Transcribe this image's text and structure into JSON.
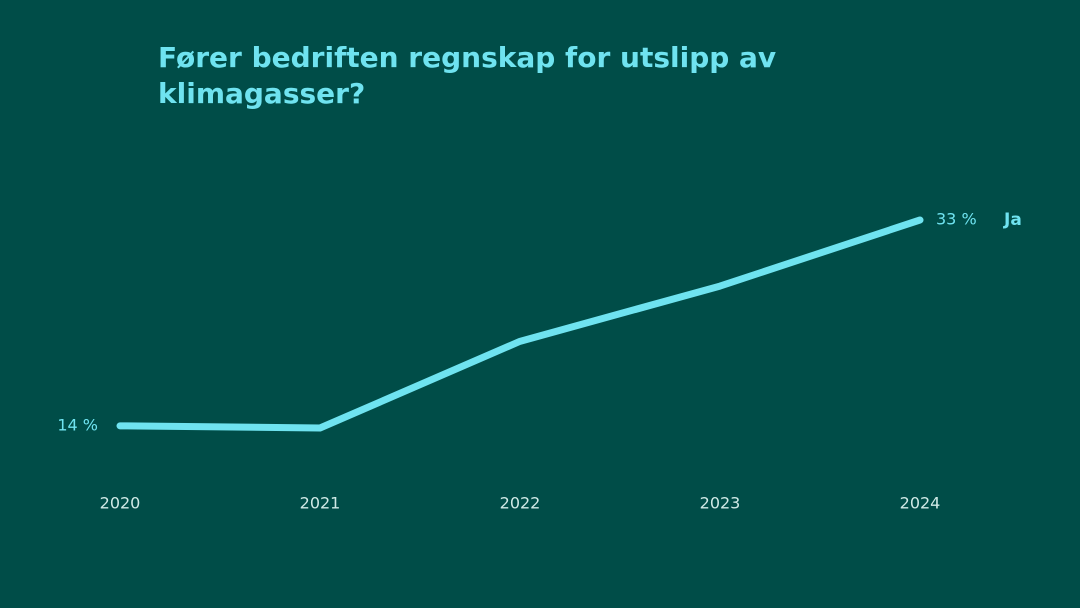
{
  "chart_data": {
    "type": "line",
    "title": "Fører bedriften regnskap for utslipp av klimagasser?",
    "categories": [
      "2020",
      "2021",
      "2022",
      "2023",
      "2024"
    ],
    "series": [
      {
        "name": "Ja",
        "color": "#6fe3f0",
        "values": [
          14,
          13.8,
          21.8,
          26.9,
          33
        ],
        "value_labels": [
          "14 %",
          null,
          null,
          null,
          "33 %"
        ]
      }
    ]
  }
}
